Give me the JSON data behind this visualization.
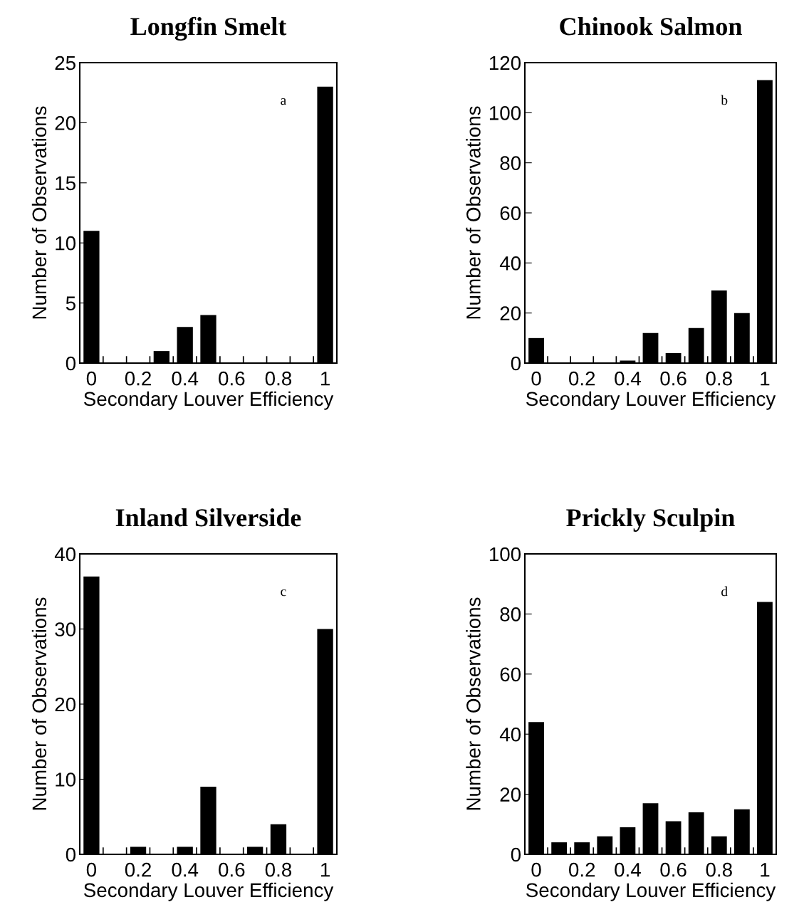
{
  "chart_data": [
    {
      "type": "bar",
      "title": "Longfin Smelt",
      "xlabel": "Secondary Louver Efficiency",
      "ylabel": "Number of Observations",
      "categories": [
        "0",
        null,
        "0.2",
        null,
        "0.4",
        null,
        "0.6",
        null,
        "0.8",
        null,
        "1"
      ],
      "values": [
        11,
        0,
        0,
        1,
        3,
        4,
        0,
        0,
        0,
        0,
        23
      ],
      "color": "#000000",
      "ylim": [
        0,
        25
      ],
      "yticks": [
        0,
        5,
        10,
        15,
        20,
        25
      ],
      "annotations": [
        "a"
      ]
    },
    {
      "type": "bar",
      "title": "Chinook Salmon",
      "xlabel": "Secondary Louver Efficiency",
      "ylabel": "Number of Observations",
      "categories": [
        "0",
        null,
        "0.2",
        null,
        "0.4",
        null,
        "0.6",
        null,
        "0.8",
        null,
        "1"
      ],
      "values": [
        10,
        0,
        0,
        0,
        1,
        12,
        4,
        14,
        29,
        20,
        113
      ],
      "color": "#000000",
      "ylim": [
        0,
        120
      ],
      "yticks": [
        0,
        20,
        40,
        60,
        80,
        100,
        120
      ],
      "annotations": [
        "b"
      ]
    },
    {
      "type": "bar",
      "title": "Inland Silverside",
      "xlabel": "Secondary Louver Efficiency",
      "ylabel": "Number of Observations",
      "categories": [
        "0",
        null,
        "0.2",
        null,
        "0.4",
        null,
        "0.6",
        null,
        "0.8",
        null,
        "1"
      ],
      "values": [
        37,
        0,
        1,
        0,
        1,
        9,
        0,
        1,
        4,
        0,
        30
      ],
      "color": "#000000",
      "ylim": [
        0,
        40
      ],
      "yticks": [
        0,
        10,
        20,
        30,
        40
      ],
      "annotations": [
        "c"
      ]
    },
    {
      "type": "bar",
      "title": "Prickly Sculpin",
      "xlabel": "Secondary Louver Efficiency",
      "ylabel": "Number of Observations",
      "categories": [
        "0",
        null,
        "0.2",
        null,
        "0.4",
        null,
        "0.6",
        null,
        "0.8",
        null,
        "1"
      ],
      "values": [
        44,
        4,
        4,
        6,
        9,
        17,
        11,
        14,
        6,
        15,
        84
      ],
      "color": "#000000",
      "ylim": [
        0,
        100
      ],
      "yticks": [
        0,
        20,
        40,
        60,
        80,
        100
      ],
      "annotations": [
        "d"
      ]
    }
  ]
}
